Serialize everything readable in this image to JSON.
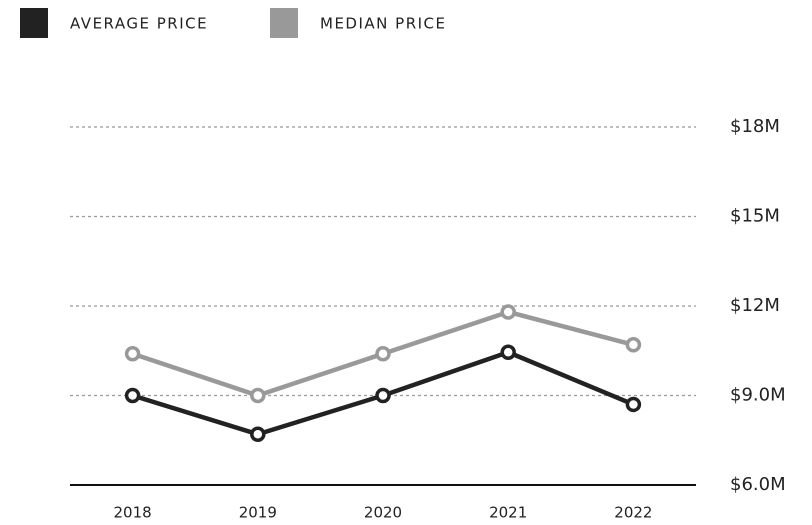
{
  "chart_data": {
    "type": "line",
    "categories": [
      "2018",
      "2019",
      "2020",
      "2021",
      "2022"
    ],
    "series": [
      {
        "name": "AVERAGE PRICE",
        "color": "#222222",
        "values": [
          9.0,
          7.7,
          9.0,
          10.45,
          8.7
        ]
      },
      {
        "name": "MEDIAN PRICE",
        "color": "#999999",
        "values": [
          10.4,
          9.0,
          10.4,
          11.8,
          10.7
        ]
      }
    ],
    "ylim": [
      6,
      18
    ],
    "yticks": [
      {
        "value": 6,
        "label": "$6.0M"
      },
      {
        "value": 9,
        "label": "$9.0M"
      },
      {
        "value": 12,
        "label": "$12M"
      },
      {
        "value": 15,
        "label": "$15M"
      },
      {
        "value": 18,
        "label": "$18M"
      }
    ],
    "grid": true,
    "legend": "top-left"
  }
}
